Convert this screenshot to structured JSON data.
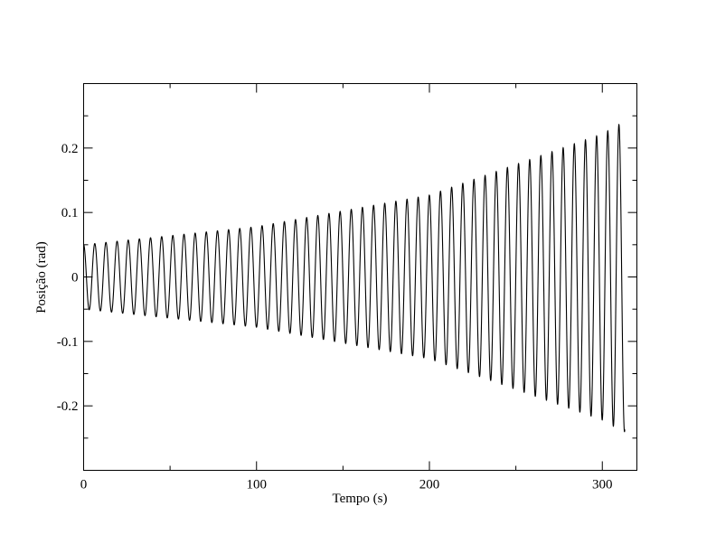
{
  "chart_data": {
    "type": "line",
    "xlabel": "Tempo (s)",
    "ylabel": "Posição (rad)",
    "xlim": [
      0,
      320
    ],
    "ylim": [
      -0.3,
      0.3
    ],
    "x_ticks": [
      0,
      100,
      200,
      300
    ],
    "x_tick_labels": [
      "0",
      "100",
      "200",
      "300"
    ],
    "y_ticks": [
      -0.2,
      -0.1,
      0,
      0.1,
      0.2
    ],
    "y_tick_labels": [
      "-0.2",
      "-0.1",
      "0",
      "0.1",
      "0.2"
    ],
    "x_minor_step": 50,
    "y_minor_step": 0.05,
    "grid": false,
    "line_color": "#000000",
    "series": [
      {
        "period": 6.45,
        "x_start": 0,
        "x_end": 313,
        "envelope": {
          "x": [
            0,
            100,
            200,
            300,
            312
          ],
          "amplitude": [
            0.05,
            0.078,
            0.127,
            0.222,
            0.24
          ]
        }
      }
    ]
  }
}
